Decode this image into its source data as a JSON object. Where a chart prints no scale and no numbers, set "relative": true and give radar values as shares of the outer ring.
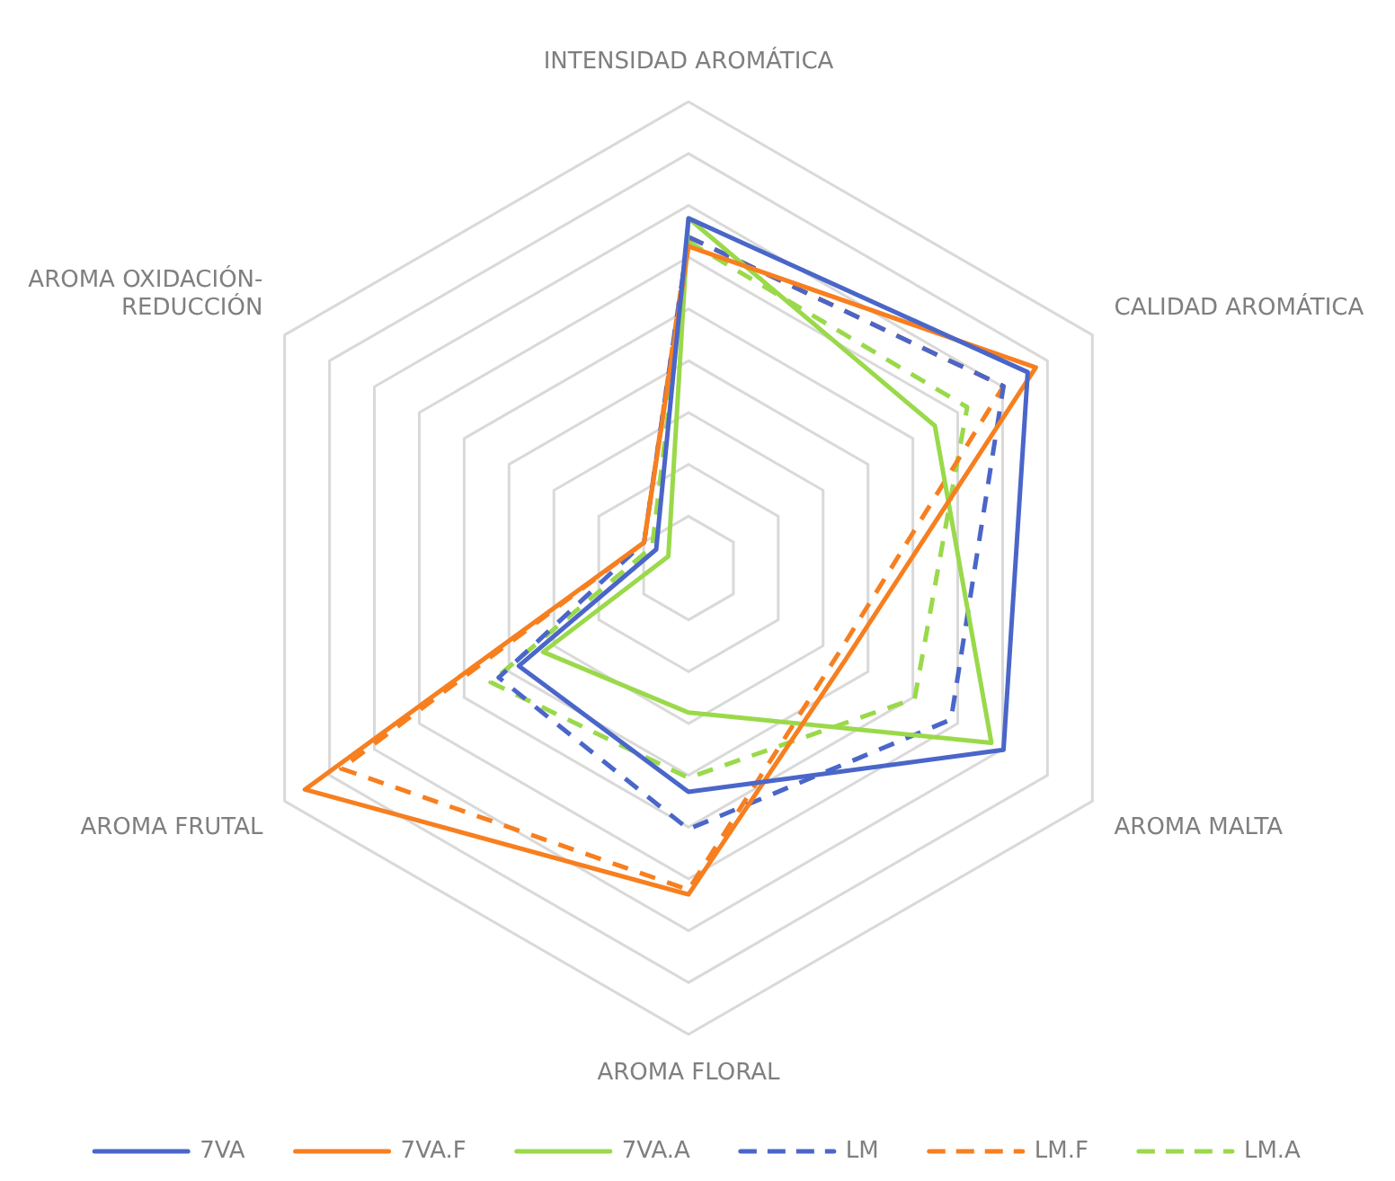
{
  "chart_data": {
    "type": "radar",
    "relative": true,
    "categories": [
      "INTENSIDAD AROMÁTICA",
      "CALIDAD AROMÁTICA",
      "AROMA MALTA",
      "AROMA FLORAL",
      "AROMA FRUTAL",
      "AROMA OXIDACIÓN-REDUCCIÓN"
    ],
    "series": [
      {
        "name": "7VA",
        "color": "#4a66c9",
        "line_style": "solid",
        "values": [
          0.75,
          0.84,
          0.78,
          0.48,
          0.42,
          0.08
        ]
      },
      {
        "name": "7VA.F",
        "color": "#f77f1f",
        "line_style": "solid",
        "values": [
          0.69,
          0.86,
          0.39,
          0.7,
          0.95,
          0.11
        ]
      },
      {
        "name": "7VA.A",
        "color": "#9ad94a",
        "line_style": "solid",
        "values": [
          0.75,
          0.61,
          0.75,
          0.31,
          0.36,
          0.05
        ]
      },
      {
        "name": "LM",
        "color": "#4a66c9",
        "line_style": "dashed",
        "values": [
          0.71,
          0.78,
          0.65,
          0.56,
          0.47,
          0.11
        ]
      },
      {
        "name": "LM.F",
        "color": "#f77f1f",
        "line_style": "dashed",
        "values": [
          0.71,
          0.78,
          0.37,
          0.69,
          0.86,
          0.11
        ]
      },
      {
        "name": "LM.A",
        "color": "#9ad94a",
        "line_style": "dashed",
        "values": [
          0.7,
          0.69,
          0.56,
          0.45,
          0.49,
          0.09
        ]
      }
    ],
    "grid": true,
    "legend": "bottom",
    "marker": "none"
  }
}
